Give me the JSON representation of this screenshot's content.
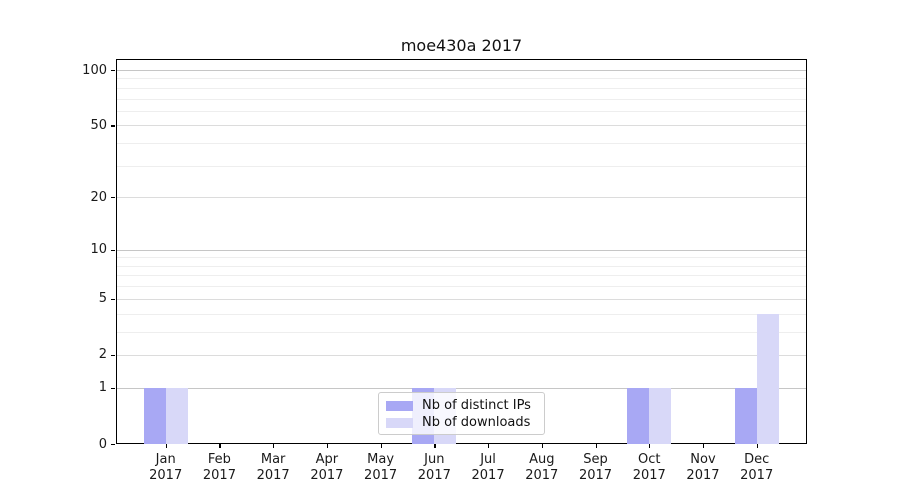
{
  "chart_data": {
    "type": "bar",
    "title": "moe430a 2017",
    "categories": [
      "Jan",
      "Feb",
      "Mar",
      "Apr",
      "May",
      "Jun",
      "Jul",
      "Aug",
      "Sep",
      "Oct",
      "Nov",
      "Dec"
    ],
    "category_year": "2017",
    "series": [
      {
        "name": "Nb of distinct IPs",
        "color": "#a8a8f4",
        "values": [
          1,
          0,
          0,
          0,
          0,
          1,
          0,
          0,
          0,
          1,
          0,
          1
        ]
      },
      {
        "name": "Nb of downloads",
        "color": "#d8d8f8",
        "values": [
          1,
          0,
          0,
          0,
          0,
          1,
          0,
          0,
          0,
          1,
          0,
          4
        ]
      }
    ],
    "xlabel": "",
    "ylabel": "",
    "yscale": "log1p",
    "ylim": [
      0,
      115
    ],
    "y_major_ticks": [
      0,
      1,
      2,
      5,
      10,
      20,
      50,
      100
    ],
    "y_minor_ticks": [
      3,
      4,
      6,
      7,
      8,
      9,
      30,
      40,
      60,
      70,
      80,
      90
    ],
    "grid": true,
    "legend_position": "lower center"
  },
  "legend": {
    "items": [
      {
        "label": "Nb of distinct IPs",
        "color": "#a8a8f4"
      },
      {
        "label": "Nb of downloads",
        "color": "#d8d8f8"
      }
    ]
  },
  "colors": {
    "spine": "#000000",
    "decade_grid": "#c6c6c6",
    "major_grid": "#dcdcdc",
    "minor_grid": "#eeeeee",
    "background": "#ffffff"
  }
}
